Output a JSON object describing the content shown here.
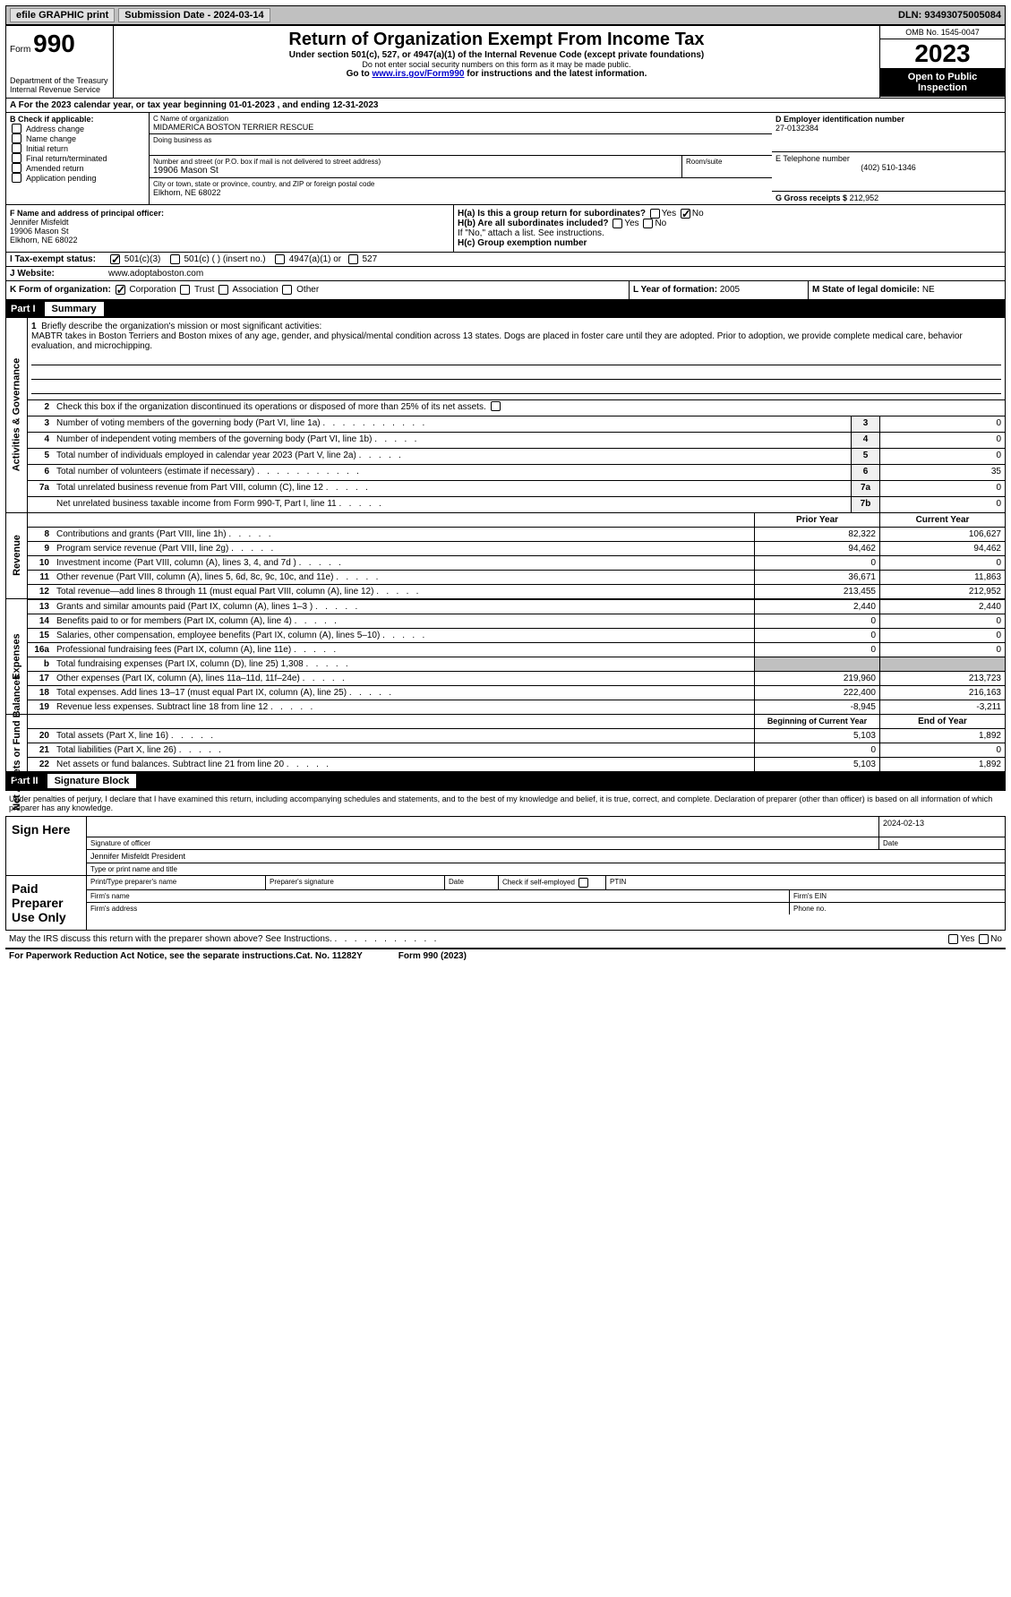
{
  "topbar": {
    "efile": "efile GRAPHIC print",
    "submission": "Submission Date - 2024-03-14",
    "dln": "DLN: 93493075005084"
  },
  "header": {
    "form_label": "Form",
    "form_number": "990",
    "title": "Return of Organization Exempt From Income Tax",
    "subtitle": "Under section 501(c), 527, or 4947(a)(1) of the Internal Revenue Code (except private foundations)",
    "note": "Do not enter social security numbers on this form as it may be made public.",
    "link_prefix": "Go to ",
    "link_url": "www.irs.gov/Form990",
    "link_suffix": " for instructions and the latest information.",
    "omb": "OMB No. 1545-0047",
    "year": "2023",
    "open_public": "Open to Public Inspection",
    "dept1": "Department of the Treasury",
    "dept2": "Internal Revenue Service"
  },
  "row_a": "A For the 2023 calendar year, or tax year beginning 01-01-2023   , and ending 12-31-2023",
  "section_b": {
    "label": "B Check if applicable:",
    "opts": [
      "Address change",
      "Name change",
      "Initial return",
      "Final return/terminated",
      "Amended return",
      "Application pending"
    ]
  },
  "section_c": {
    "name_lbl": "C Name of organization",
    "name": "MIDAMERICA BOSTON TERRIER RESCUE",
    "dba_lbl": "Doing business as",
    "addr_lbl": "Number and street (or P.O. box if mail is not delivered to street address)",
    "room_lbl": "Room/suite",
    "addr": "19906 Mason St",
    "city_lbl": "City or town, state or province, country, and ZIP or foreign postal code",
    "city": "Elkhorn, NE  68022"
  },
  "section_d": {
    "lbl": "D Employer identification number",
    "val": "27-0132384"
  },
  "section_e": {
    "lbl": "E Telephone number",
    "val": "(402) 510-1346"
  },
  "section_g": {
    "lbl": "G Gross receipts $",
    "val": "212,952"
  },
  "section_f": {
    "lbl": "F  Name and address of principal officer:",
    "name": "Jennifer Misfeldt",
    "addr1": "19906 Mason St",
    "addr2": "Elkhorn, NE  68022"
  },
  "section_h": {
    "ha": "H(a)  Is this a group return for subordinates?",
    "hb": "H(b)  Are all subordinates included?",
    "hb_note": "If \"No,\" attach a list. See instructions.",
    "hc": "H(c)  Group exemption number",
    "yes": "Yes",
    "no": "No"
  },
  "section_i": {
    "lbl": "I   Tax-exempt status:",
    "o1": "501(c)(3)",
    "o2": "501(c) (  ) (insert no.)",
    "o3": "4947(a)(1) or",
    "o4": "527"
  },
  "section_j": {
    "lbl": "J   Website:",
    "val": "www.adoptaboston.com"
  },
  "section_k": {
    "lbl": "K Form of organization:",
    "o1": "Corporation",
    "o2": "Trust",
    "o3": "Association",
    "o4": "Other"
  },
  "section_l": {
    "lbl": "L Year of formation:",
    "val": "2005"
  },
  "section_m": {
    "lbl": "M State of legal domicile:",
    "val": "NE"
  },
  "part1": {
    "num": "Part I",
    "title": "Summary"
  },
  "side_labels": {
    "ag": "Activities & Governance",
    "rev": "Revenue",
    "exp": "Expenses",
    "nab": "Net Assets or Fund Balances"
  },
  "mission": {
    "lbl": "Briefly describe the organization's mission or most significant activities:",
    "text": "MABTR takes in Boston Terriers and Boston mixes of any age, gender, and physical/mental condition across 13 states. Dogs are placed in foster care until they are adopted. Prior to adoption, we provide complete medical care, behavior evaluation, and microchipping."
  },
  "lines_ag": {
    "l2": "Check this box        if the organization discontinued its operations or disposed of more than 25% of its net assets.",
    "l3": "Number of voting members of the governing body (Part VI, line 1a)",
    "l4": "Number of independent voting members of the governing body (Part VI, line 1b)",
    "l5": "Total number of individuals employed in calendar year 2023 (Part V, line 2a)",
    "l6": "Total number of volunteers (estimate if necessary)",
    "l7a": "Total unrelated business revenue from Part VIII, column (C), line 12",
    "l7b": "Net unrelated business taxable income from Form 990-T, Part I, line 11",
    "v3": "0",
    "v4": "0",
    "v5": "0",
    "v6": "35",
    "v7a": "0",
    "v7b": "0"
  },
  "col_headers": {
    "prior": "Prior Year",
    "current": "Current Year",
    "beg": "Beginning of Current Year",
    "end": "End of Year"
  },
  "revenue": [
    {
      "n": "8",
      "t": "Contributions and grants (Part VIII, line 1h)",
      "p": "82,322",
      "c": "106,627"
    },
    {
      "n": "9",
      "t": "Program service revenue (Part VIII, line 2g)",
      "p": "94,462",
      "c": "94,462"
    },
    {
      "n": "10",
      "t": "Investment income (Part VIII, column (A), lines 3, 4, and 7d )",
      "p": "0",
      "c": "0"
    },
    {
      "n": "11",
      "t": "Other revenue (Part VIII, column (A), lines 5, 6d, 8c, 9c, 10c, and 11e)",
      "p": "36,671",
      "c": "11,863"
    },
    {
      "n": "12",
      "t": "Total revenue—add lines 8 through 11 (must equal Part VIII, column (A), line 12)",
      "p": "213,455",
      "c": "212,952"
    }
  ],
  "expenses": [
    {
      "n": "13",
      "t": "Grants and similar amounts paid (Part IX, column (A), lines 1–3 )",
      "p": "2,440",
      "c": "2,440"
    },
    {
      "n": "14",
      "t": "Benefits paid to or for members (Part IX, column (A), line 4)",
      "p": "0",
      "c": "0"
    },
    {
      "n": "15",
      "t": "Salaries, other compensation, employee benefits (Part IX, column (A), lines 5–10)",
      "p": "0",
      "c": "0"
    },
    {
      "n": "16a",
      "t": "Professional fundraising fees (Part IX, column (A), line 11e)",
      "p": "0",
      "c": "0"
    },
    {
      "n": "b",
      "t": "Total fundraising expenses (Part IX, column (D), line 25) 1,308",
      "p": "",
      "c": "",
      "gray": true
    },
    {
      "n": "17",
      "t": "Other expenses (Part IX, column (A), lines 11a–11d, 11f–24e)",
      "p": "219,960",
      "c": "213,723"
    },
    {
      "n": "18",
      "t": "Total expenses. Add lines 13–17 (must equal Part IX, column (A), line 25)",
      "p": "222,400",
      "c": "216,163"
    },
    {
      "n": "19",
      "t": "Revenue less expenses. Subtract line 18 from line 12",
      "p": "-8,945",
      "c": "-3,211"
    }
  ],
  "netassets": [
    {
      "n": "20",
      "t": "Total assets (Part X, line 16)",
      "p": "5,103",
      "c": "1,892"
    },
    {
      "n": "21",
      "t": "Total liabilities (Part X, line 26)",
      "p": "0",
      "c": "0"
    },
    {
      "n": "22",
      "t": "Net assets or fund balances. Subtract line 21 from line 20",
      "p": "5,103",
      "c": "1,892"
    }
  ],
  "part2": {
    "num": "Part II",
    "title": "Signature Block"
  },
  "sig": {
    "perjury": "Under penalties of perjury, I declare that I have examined this return, including accompanying schedules and statements, and to the best of my knowledge and belief, it is true, correct, and complete. Declaration of preparer (other than officer) is based on all information of which preparer has any knowledge.",
    "sign_here": "Sign Here",
    "sig_officer": "Signature of officer",
    "date_lbl": "Date",
    "date": "2024-02-13",
    "name_title": "Jennifer Misfeldt President",
    "type_lbl": "Type or print name and title",
    "paid": "Paid Preparer Use Only",
    "print_name": "Print/Type preparer's name",
    "prep_sig": "Preparer's signature",
    "check_self": "Check        if self-employed",
    "ptin": "PTIN",
    "firm_name": "Firm's name",
    "firm_ein": "Firm's EIN",
    "firm_addr": "Firm's address",
    "phone": "Phone no."
  },
  "footer": {
    "discuss": "May the IRS discuss this return with the preparer shown above? See Instructions.",
    "yes": "Yes",
    "no": "No",
    "pra": "For Paperwork Reduction Act Notice, see the separate instructions.",
    "cat": "Cat. No. 11282Y",
    "form": "Form 990 (2023)"
  }
}
